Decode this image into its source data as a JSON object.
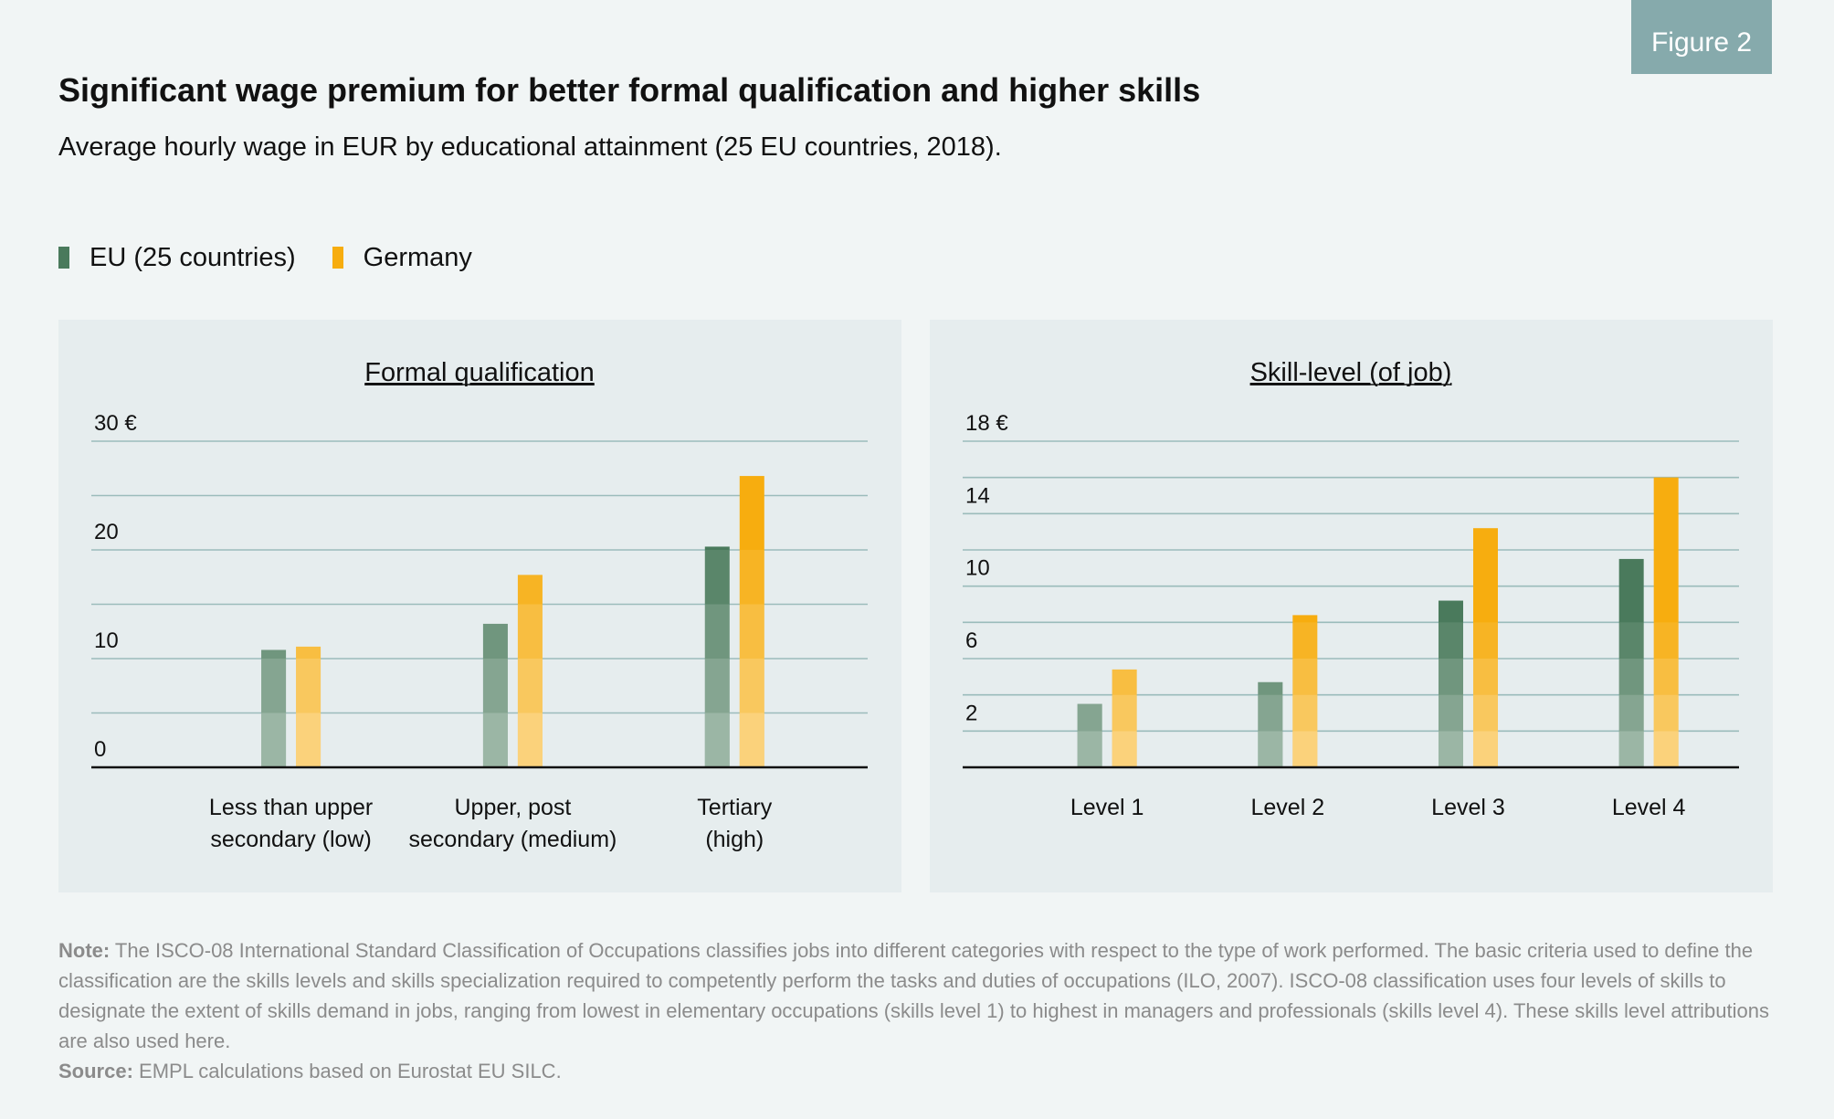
{
  "badge": "Figure 2",
  "title": "Significant wage premium for better formal qualification and higher skills",
  "subtitle": "Average hourly wage in EUR by educational attainment (25 EU countries, 2018).",
  "colors": {
    "eu": "#4a7a5c",
    "germany": "#f7ad0f",
    "gridline": "#9bbcbb",
    "axis": "#111111",
    "panel_bg": "#e6edee",
    "badge_bg": "#86aaac"
  },
  "legend": {
    "eu": "EU (25 countries)",
    "germany": "Germany"
  },
  "note": {
    "note_label": "Note:",
    "note_text": " The ISCO-08 International Standard Classification of Occupations classifies jobs into different categories with respect to the type of work performed. The basic criteria used to define the classification are the skills levels and skills specialization required to competently perform the tasks and duties of occupations (ILO, 2007).  ISCO-08 classification uses four levels of skills to designate the extent of skills demand in jobs, ranging from lowest in elementary occupations (skills level 1) to highest in managers and professionals (skills level 4). These skills level attributions are also used here.",
    "source_label": "Source:",
    "source_text": " EMPL calculations based on Eurostat EU SILC."
  },
  "chart_data": [
    {
      "type": "bar",
      "title": "Formal qualification",
      "categories": [
        "Less than upper|secondary (low)",
        "Upper, post|secondary (medium)",
        "Tertiary|(high)"
      ],
      "series": [
        {
          "name": "EU (25 countries)",
          "values": [
            10.8,
            13.2,
            20.3
          ]
        },
        {
          "name": "Germany",
          "values": [
            11.1,
            17.7,
            26.8
          ]
        }
      ],
      "ylim": [
        0,
        30
      ],
      "yticks": [
        0,
        5,
        10,
        15,
        20,
        25,
        30
      ],
      "ytick_labels": [
        "0",
        "",
        "10",
        "",
        "20",
        "",
        "30 €"
      ],
      "grid": true
    },
    {
      "type": "bar",
      "title": "Skill-level (of job)",
      "categories": [
        "Level 1",
        "Level 2",
        "Level 3",
        "Level 4"
      ],
      "series": [
        {
          "name": "EU (25 countries)",
          "values": [
            3.5,
            4.7,
            9.2,
            11.5
          ]
        },
        {
          "name": "Germany",
          "values": [
            5.4,
            8.4,
            13.2,
            16.0
          ]
        }
      ],
      "ylim": [
        0,
        18
      ],
      "yticks": [
        0,
        2,
        4,
        6,
        8,
        10,
        12,
        14,
        16,
        18
      ],
      "ytick_labels": [
        "",
        "2",
        "",
        "6",
        "",
        "10",
        "",
        "14",
        "",
        "18 €"
      ],
      "grid": true
    }
  ]
}
